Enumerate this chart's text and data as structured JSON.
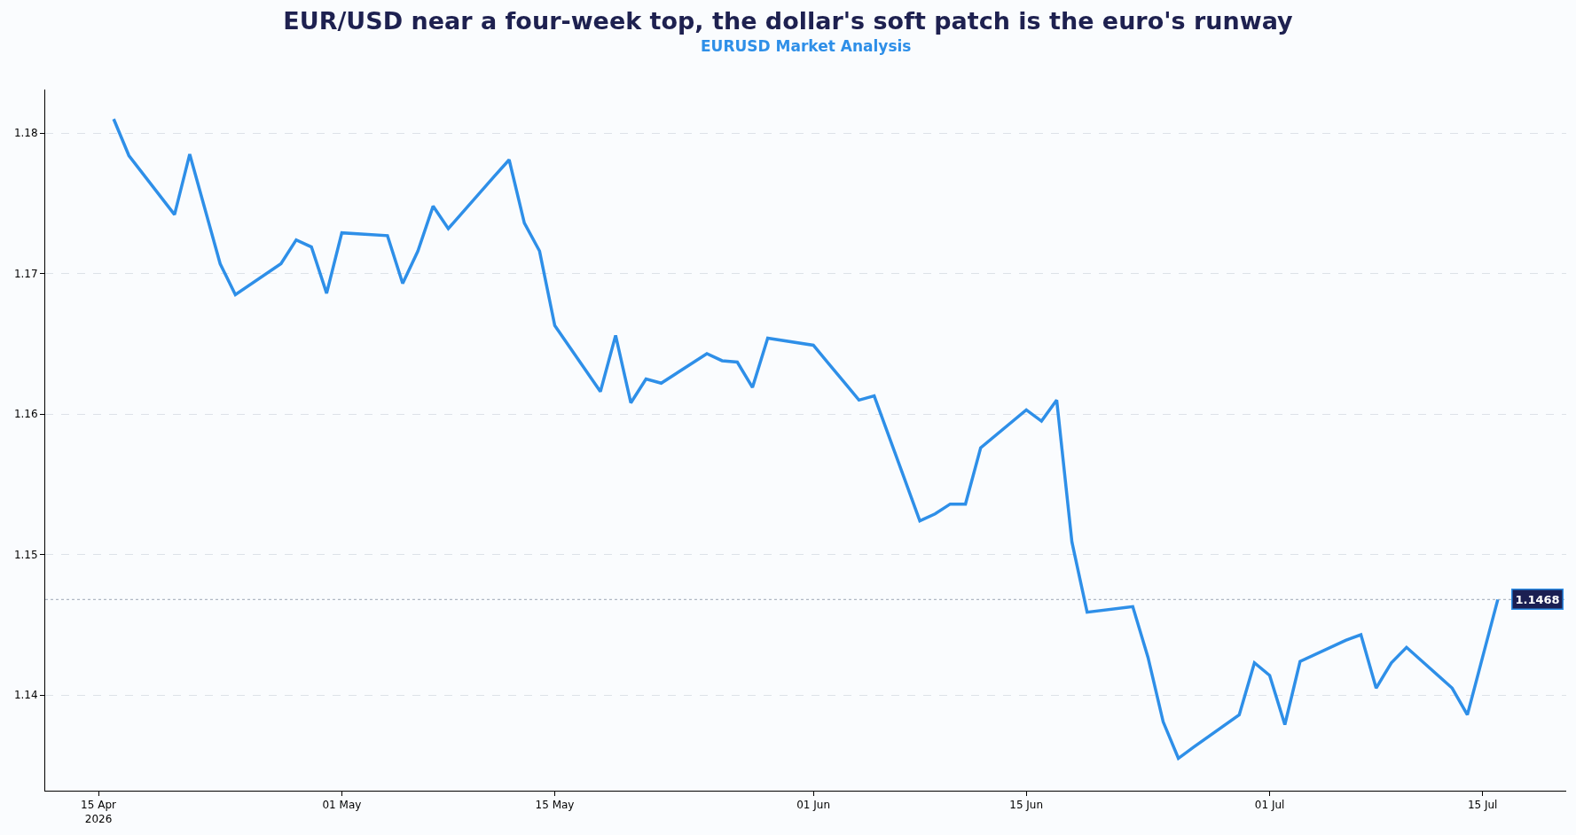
{
  "chart_data": {
    "type": "line",
    "title": "EUR/USD near a four-week top, the dollar's soft patch is the euro's runway",
    "subtitle": "EURUSD Market Analysis",
    "x": [
      "2026-04-16",
      "2026-04-17",
      "2026-04-20",
      "2026-04-21",
      "2026-04-22",
      "2026-04-23",
      "2026-04-24",
      "2026-04-27",
      "2026-04-28",
      "2026-04-29",
      "2026-04-30",
      "2026-05-01",
      "2026-05-04",
      "2026-05-05",
      "2026-05-06",
      "2026-05-07",
      "2026-05-08",
      "2026-05-11",
      "2026-05-12",
      "2026-05-13",
      "2026-05-14",
      "2026-05-15",
      "2026-05-18",
      "2026-05-19",
      "2026-05-20",
      "2026-05-21",
      "2026-05-22",
      "2026-05-25",
      "2026-05-26",
      "2026-05-27",
      "2026-05-28",
      "2026-05-29",
      "2026-06-01",
      "2026-06-02",
      "2026-06-03",
      "2026-06-04",
      "2026-06-05",
      "2026-06-08",
      "2026-06-09",
      "2026-06-10",
      "2026-06-11",
      "2026-06-12",
      "2026-06-15",
      "2026-06-16",
      "2026-06-17",
      "2026-06-18",
      "2026-06-19",
      "2026-06-22",
      "2026-06-23",
      "2026-06-24",
      "2026-06-25",
      "2026-06-26",
      "2026-06-29",
      "2026-06-30",
      "2026-07-01",
      "2026-07-02",
      "2026-07-03",
      "2026-07-06",
      "2026-07-07",
      "2026-07-08",
      "2026-07-09",
      "2026-07-10",
      "2026-07-13",
      "2026-07-14",
      "2026-07-15",
      "2026-07-16"
    ],
    "series": [
      {
        "color": "#2e8fe8",
        "values": [
          1.181,
          1.1784,
          1.1742,
          1.1785,
          1.1746,
          1.1707,
          1.1685,
          1.1707,
          1.1724,
          1.1719,
          1.1686,
          1.1729,
          1.1727,
          1.1693,
          1.1716,
          1.1748,
          1.1732,
          1.1769,
          1.1781,
          1.1736,
          1.1716,
          1.1663,
          1.1616,
          1.1656,
          1.1608,
          1.1625,
          1.1622,
          1.1643,
          1.1638,
          1.1637,
          1.1619,
          1.1654,
          1.1649,
          1.1636,
          1.1623,
          1.161,
          1.1613,
          1.1524,
          1.1529,
          1.1536,
          1.1536,
          1.1576,
          1.1603,
          1.1595,
          1.161,
          1.1509,
          1.1459,
          1.1463,
          1.1427,
          1.1381,
          1.1355,
          1.1363,
          1.1386,
          1.1423,
          1.1414,
          1.1379,
          1.1424,
          1.1439,
          1.1443,
          1.1405,
          1.1423,
          1.1434,
          1.1405,
          1.1386,
          1.1427,
          1.1468
        ]
      }
    ],
    "xlim": [
      "2026-04-11T12:00",
      "2026-07-20T12:00"
    ],
    "xticks": [
      {
        "value": "2026-04-15",
        "label": "15 Apr\n2026"
      },
      {
        "value": "2026-05-01",
        "label": "01 May"
      },
      {
        "value": "2026-05-15",
        "label": "15 May"
      },
      {
        "value": "2026-06-01",
        "label": "01 Jun"
      },
      {
        "value": "2026-06-15",
        "label": "15 Jun"
      },
      {
        "value": "2026-07-01",
        "label": "01 Jul"
      },
      {
        "value": "2026-07-15",
        "label": "15 Jul"
      }
    ],
    "ylim": [
      1.1332,
      1.1831
    ],
    "yticks": [
      1.14,
      1.15,
      1.16,
      1.17,
      1.18
    ],
    "ref_lines": [
      {
        "axis": "y",
        "value": 1.1468,
        "label": "1.1468",
        "color": "#b0b8c4",
        "line_style": "dotted"
      }
    ],
    "grid": "y",
    "line_style": "solid",
    "marker": "none"
  }
}
